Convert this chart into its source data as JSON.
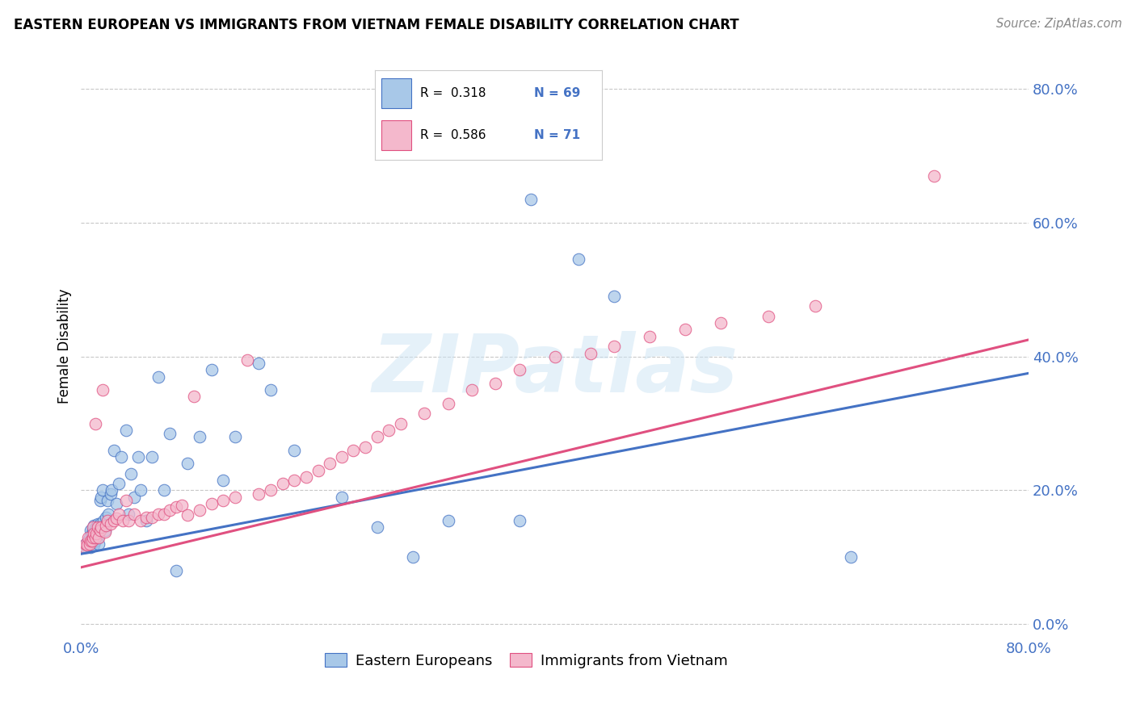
{
  "title": "EASTERN EUROPEAN VS IMMIGRANTS FROM VIETNAM FEMALE DISABILITY CORRELATION CHART",
  "source": "Source: ZipAtlas.com",
  "ylabel": "Female Disability",
  "yticks": [
    "0.0%",
    "20.0%",
    "40.0%",
    "60.0%",
    "80.0%"
  ],
  "ytick_vals": [
    0.0,
    0.2,
    0.4,
    0.6,
    0.8
  ],
  "xlim": [
    0.0,
    0.8
  ],
  "ylim": [
    -0.02,
    0.85
  ],
  "legend_R1": "R =  0.318",
  "legend_N1": "N = 69",
  "legend_R2": "R =  0.586",
  "legend_N2": "N = 71",
  "color_blue": "#a8c8e8",
  "color_pink": "#f4b8cc",
  "color_blue_dark": "#4472c4",
  "color_pink_dark": "#e05080",
  "color_axis_text": "#4472c4",
  "watermark": "ZIPatlas",
  "ee_x": [
    0.003,
    0.004,
    0.005,
    0.006,
    0.007,
    0.007,
    0.008,
    0.008,
    0.009,
    0.009,
    0.009,
    0.01,
    0.01,
    0.01,
    0.011,
    0.011,
    0.012,
    0.012,
    0.013,
    0.013,
    0.014,
    0.014,
    0.015,
    0.015,
    0.016,
    0.016,
    0.017,
    0.018,
    0.018,
    0.019,
    0.02,
    0.021,
    0.022,
    0.023,
    0.025,
    0.026,
    0.028,
    0.03,
    0.032,
    0.034,
    0.038,
    0.04,
    0.042,
    0.045,
    0.048,
    0.05,
    0.055,
    0.06,
    0.065,
    0.07,
    0.075,
    0.08,
    0.09,
    0.1,
    0.11,
    0.12,
    0.13,
    0.15,
    0.16,
    0.18,
    0.22,
    0.25,
    0.28,
    0.31,
    0.37,
    0.38,
    0.42,
    0.45,
    0.65
  ],
  "ee_y": [
    0.115,
    0.12,
    0.115,
    0.125,
    0.12,
    0.13,
    0.115,
    0.14,
    0.125,
    0.13,
    0.135,
    0.118,
    0.13,
    0.14,
    0.118,
    0.148,
    0.125,
    0.14,
    0.128,
    0.145,
    0.13,
    0.15,
    0.12,
    0.145,
    0.185,
    0.15,
    0.19,
    0.145,
    0.2,
    0.155,
    0.14,
    0.16,
    0.185,
    0.165,
    0.195,
    0.2,
    0.26,
    0.18,
    0.21,
    0.25,
    0.29,
    0.165,
    0.225,
    0.19,
    0.25,
    0.2,
    0.155,
    0.25,
    0.37,
    0.2,
    0.285,
    0.08,
    0.24,
    0.28,
    0.38,
    0.215,
    0.28,
    0.39,
    0.35,
    0.26,
    0.19,
    0.145,
    0.1,
    0.155,
    0.155,
    0.635,
    0.545,
    0.49,
    0.1
  ],
  "vn_x": [
    0.003,
    0.004,
    0.005,
    0.006,
    0.007,
    0.008,
    0.009,
    0.01,
    0.01,
    0.011,
    0.012,
    0.012,
    0.013,
    0.014,
    0.015,
    0.016,
    0.017,
    0.018,
    0.02,
    0.021,
    0.022,
    0.025,
    0.028,
    0.03,
    0.032,
    0.035,
    0.038,
    0.04,
    0.045,
    0.05,
    0.055,
    0.06,
    0.065,
    0.07,
    0.075,
    0.08,
    0.085,
    0.09,
    0.095,
    0.1,
    0.11,
    0.12,
    0.13,
    0.14,
    0.15,
    0.16,
    0.17,
    0.18,
    0.19,
    0.2,
    0.21,
    0.22,
    0.23,
    0.24,
    0.25,
    0.26,
    0.27,
    0.29,
    0.31,
    0.33,
    0.35,
    0.37,
    0.4,
    0.43,
    0.45,
    0.48,
    0.51,
    0.54,
    0.58,
    0.62,
    0.72
  ],
  "vn_y": [
    0.115,
    0.12,
    0.118,
    0.13,
    0.12,
    0.125,
    0.125,
    0.13,
    0.145,
    0.135,
    0.13,
    0.3,
    0.135,
    0.145,
    0.13,
    0.14,
    0.145,
    0.35,
    0.138,
    0.148,
    0.155,
    0.15,
    0.155,
    0.158,
    0.165,
    0.155,
    0.185,
    0.155,
    0.165,
    0.155,
    0.16,
    0.16,
    0.165,
    0.165,
    0.17,
    0.175,
    0.178,
    0.163,
    0.34,
    0.17,
    0.18,
    0.185,
    0.19,
    0.395,
    0.195,
    0.2,
    0.21,
    0.215,
    0.22,
    0.23,
    0.24,
    0.25,
    0.26,
    0.265,
    0.28,
    0.29,
    0.3,
    0.315,
    0.33,
    0.35,
    0.36,
    0.38,
    0.4,
    0.405,
    0.415,
    0.43,
    0.44,
    0.45,
    0.46,
    0.475,
    0.67
  ],
  "trend_ee_x0": 0.0,
  "trend_ee_y0": 0.105,
  "trend_ee_x1": 0.8,
  "trend_ee_y1": 0.375,
  "trend_vn_x0": 0.0,
  "trend_vn_y0": 0.085,
  "trend_vn_x1": 0.8,
  "trend_vn_y1": 0.425
}
